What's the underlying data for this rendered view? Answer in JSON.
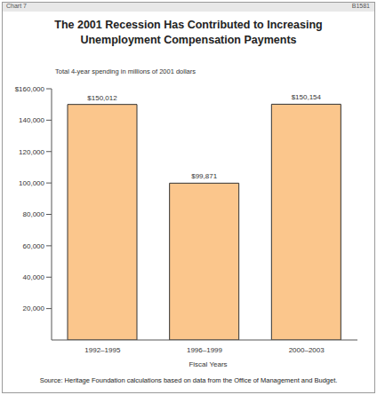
{
  "header": {
    "chart_label": "Chart 7",
    "chart_id": "B1581"
  },
  "chart_data": {
    "type": "bar",
    "title": "The 2001 Recession Has Contributed to Increasing Unemployment Compensation Payments",
    "ylabel": "Total 4-year spending in millions of 2001 dollars",
    "xlabel": "Fiscal Years",
    "source": "Source: Heritage Foundation calculations based on data from the Office of Management and Budget.",
    "categories": [
      "1992–1995",
      "1996–1999",
      "2000–2003"
    ],
    "values": [
      150012,
      99871,
      150154
    ],
    "value_labels": [
      "$150,012",
      "$99,871",
      "$150,154"
    ],
    "data_labels": true,
    "color": "#fbc68c",
    "ylim": [
      0,
      160000
    ],
    "yticks": [
      {
        "value": 20000,
        "label": "20,000"
      },
      {
        "value": 40000,
        "label": "40,000"
      },
      {
        "value": 60000,
        "label": "60,000"
      },
      {
        "value": 80000,
        "label": "80,000"
      },
      {
        "value": 100000,
        "label": "100,000"
      },
      {
        "value": 120000,
        "label": "120,000"
      },
      {
        "value": 140000,
        "label": "140,000"
      },
      {
        "value": 160000,
        "label": "$160,000"
      }
    ],
    "grid": false
  }
}
